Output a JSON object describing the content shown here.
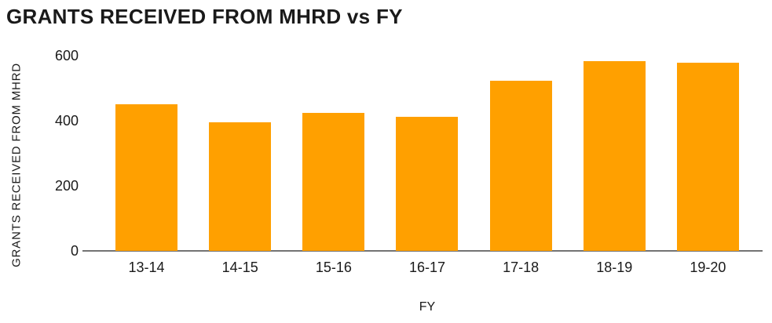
{
  "chart_data": {
    "type": "bar",
    "title": "GRANTS RECEIVED FROM MHRD vs FY",
    "xlabel": "FY",
    "ylabel": "GRANTS RECEIVED FROM MHRD",
    "categories": [
      "13-14",
      "14-15",
      "15-16",
      "16-17",
      "17-18",
      "18-19",
      "19-20"
    ],
    "values": [
      450,
      395,
      424,
      412,
      522,
      582,
      578
    ],
    "yticks": [
      0,
      200,
      400,
      600
    ],
    "ylim": [
      0,
      650
    ],
    "grid": false,
    "legend": false,
    "colors": {
      "bar": "#FFA000",
      "axis_line": "#737373",
      "text": "#1a1a1a",
      "background": "#ffffff"
    }
  }
}
